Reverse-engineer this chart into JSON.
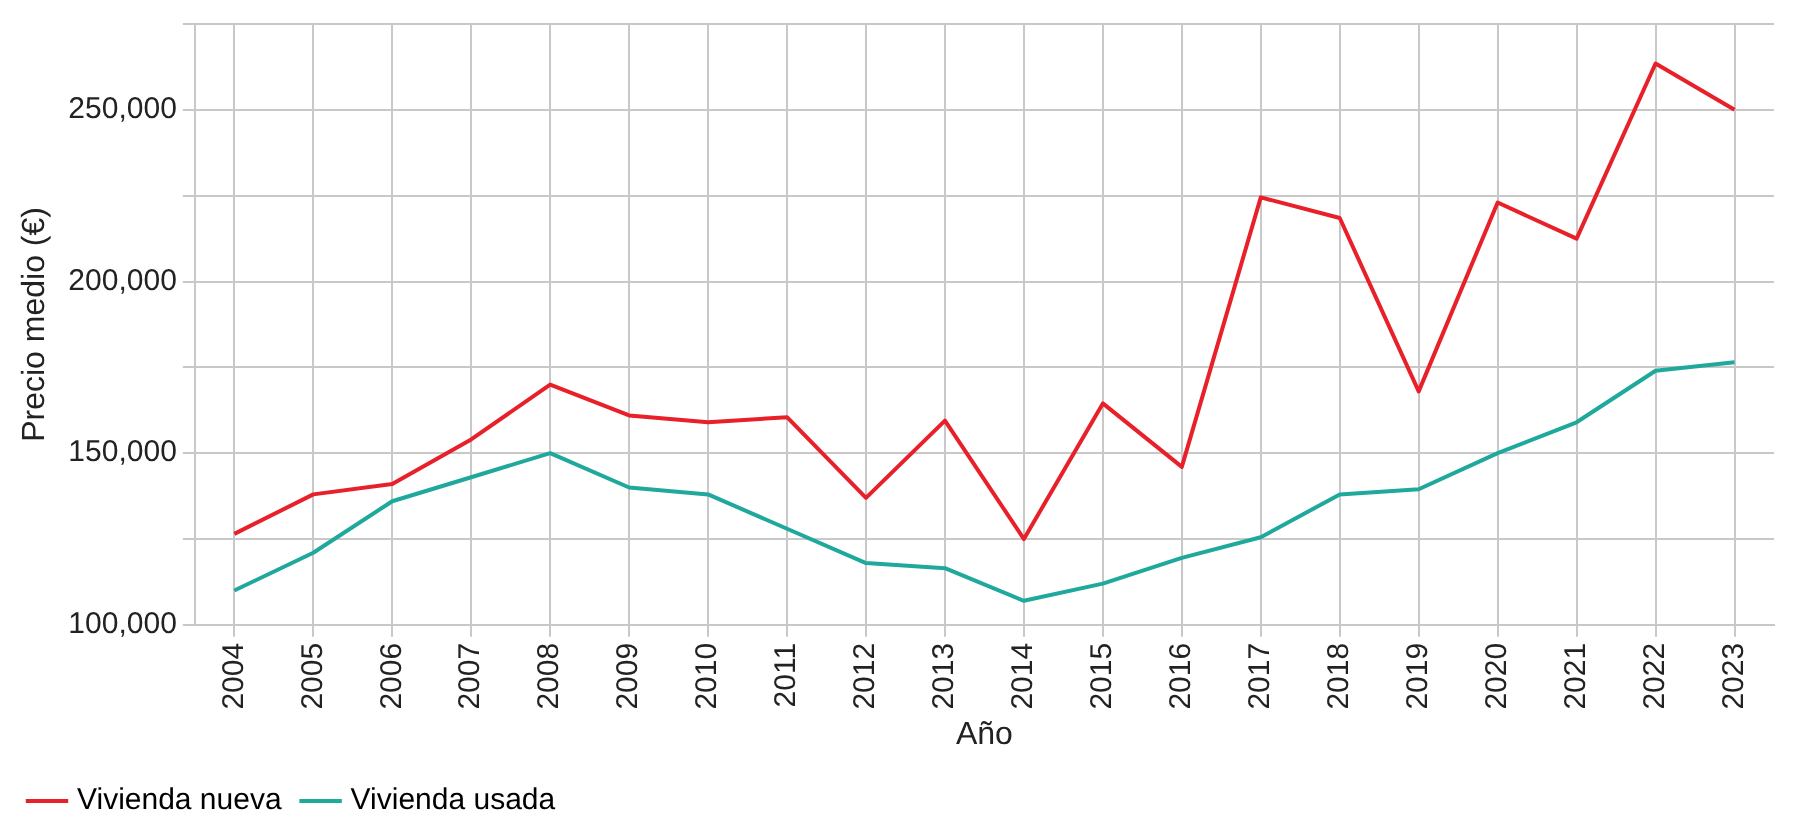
{
  "chart_data": {
    "type": "line",
    "xlabel": "Año",
    "ylabel": "Precio medio (€)",
    "categories": [
      "2004",
      "2005",
      "2006",
      "2007",
      "2008",
      "2009",
      "2010",
      "2011",
      "2012",
      "2013",
      "2014",
      "2015",
      "2016",
      "2017",
      "2018",
      "2019",
      "2020",
      "2021",
      "2022",
      "2023"
    ],
    "series": [
      {
        "name": "Vivienda nueva",
        "color": "#e8202a",
        "values": [
          126500,
          138000,
          141000,
          154000,
          170000,
          161000,
          159000,
          160500,
          137000,
          159500,
          125000,
          164500,
          146000,
          224500,
          218500,
          168000,
          223000,
          212500,
          263500,
          250000
        ]
      },
      {
        "name": "Vivienda usada",
        "color": "#1fa89c",
        "values": [
          110000,
          121000,
          136000,
          143000,
          150000,
          140000,
          138000,
          128000,
          118000,
          116500,
          107000,
          112000,
          119500,
          125500,
          138000,
          139500,
          150000,
          159000,
          174000,
          176500
        ]
      }
    ],
    "ylim": [
      100000,
      275000
    ],
    "yticks": [
      {
        "value": 100000,
        "label": "100,000"
      },
      {
        "value": 125000,
        "label": null
      },
      {
        "value": 150000,
        "label": "150,000"
      },
      {
        "value": 175000,
        "label": null
      },
      {
        "value": 200000,
        "label": "200,000"
      },
      {
        "value": 225000,
        "label": null
      },
      {
        "value": 250000,
        "label": "250,000"
      },
      {
        "value": 275000,
        "label": null
      }
    ],
    "grid": true,
    "legend": "bottom left",
    "marker": "none",
    "line_style": "solid"
  }
}
